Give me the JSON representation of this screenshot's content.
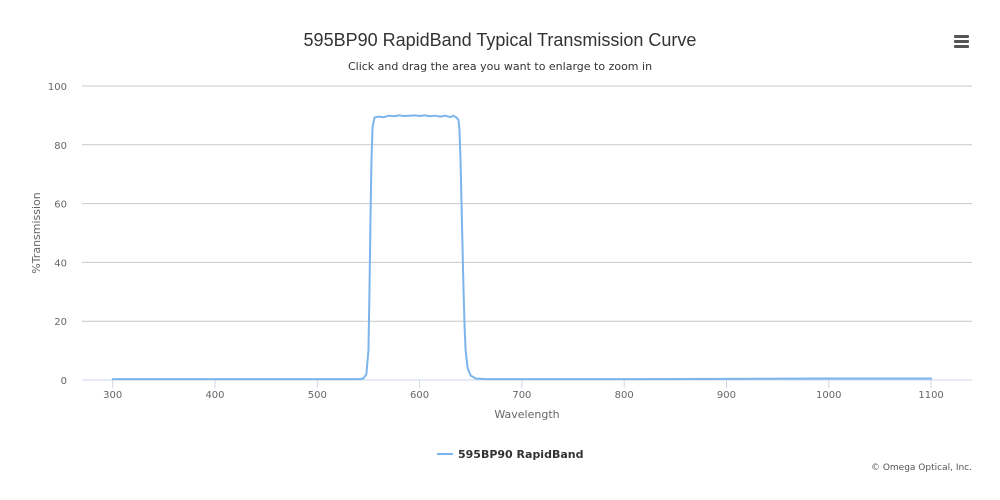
{
  "chart_data": {
    "type": "line",
    "title": "595BP90 RapidBand Typical Transmission Curve",
    "subtitle": "Click and drag the area you want to enlarge to zoom in",
    "xlabel": "Wavelength",
    "ylabel": "%Transmission",
    "xlim": [
      270,
      1140
    ],
    "ylim": [
      0,
      100
    ],
    "x_ticks": [
      300,
      400,
      500,
      600,
      700,
      800,
      900,
      1000,
      1100
    ],
    "y_ticks": [
      0,
      20,
      40,
      60,
      80,
      100
    ],
    "grid": "horizontal",
    "legend_position": "bottom-center",
    "series": [
      {
        "name": "595BP90 RapidBand",
        "color": "#7cb5ec",
        "points": [
          [
            300,
            0.3
          ],
          [
            400,
            0.3
          ],
          [
            500,
            0.3
          ],
          [
            540,
            0.3
          ],
          [
            545,
            0.5
          ],
          [
            548,
            2
          ],
          [
            550,
            10
          ],
          [
            551,
            30
          ],
          [
            552,
            55
          ],
          [
            553,
            75
          ],
          [
            554,
            86
          ],
          [
            556,
            89.3
          ],
          [
            560,
            89.6
          ],
          [
            565,
            89.4
          ],
          [
            570,
            89.9
          ],
          [
            575,
            89.7
          ],
          [
            580,
            90.0
          ],
          [
            585,
            89.8
          ],
          [
            590,
            89.9
          ],
          [
            595,
            90.0
          ],
          [
            600,
            89.8
          ],
          [
            605,
            90.0
          ],
          [
            610,
            89.7
          ],
          [
            615,
            89.9
          ],
          [
            620,
            89.6
          ],
          [
            625,
            89.9
          ],
          [
            630,
            89.4
          ],
          [
            633,
            89.9
          ],
          [
            636,
            89.3
          ],
          [
            638,
            88.5
          ],
          [
            639,
            85
          ],
          [
            640,
            75
          ],
          [
            641,
            60
          ],
          [
            642,
            45
          ],
          [
            643,
            30
          ],
          [
            644,
            18
          ],
          [
            645,
            10
          ],
          [
            647,
            4
          ],
          [
            650,
            1.5
          ],
          [
            655,
            0.5
          ],
          [
            665,
            0.3
          ],
          [
            700,
            0.3
          ],
          [
            800,
            0.3
          ],
          [
            900,
            0.4
          ],
          [
            1000,
            0.5
          ],
          [
            1100,
            0.5
          ]
        ]
      }
    ]
  },
  "credits": "© Omega Optical, Inc.",
  "menu_icon": "hamburger-menu-icon"
}
